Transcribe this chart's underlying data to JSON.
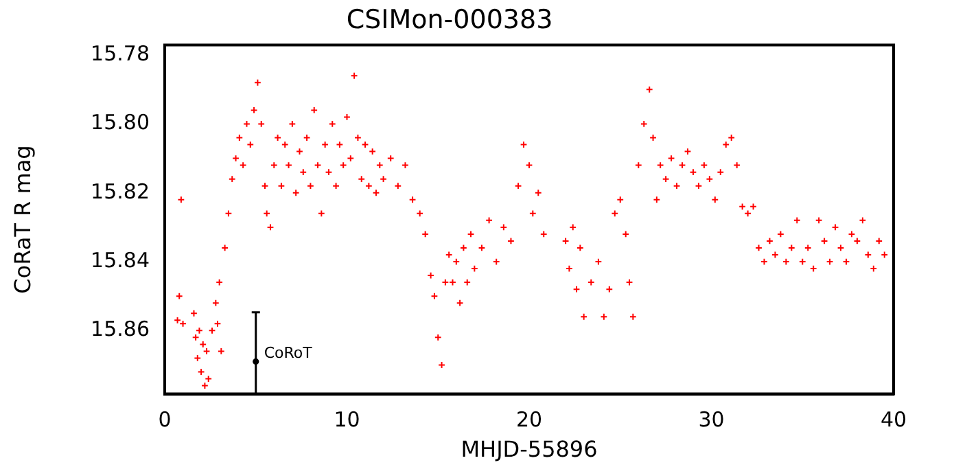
{
  "chart_data": {
    "type": "scatter",
    "title": "CSIMon-000383",
    "xlabel": "MHJD-55896",
    "ylabel": "CoRaT R mag",
    "xlim": [
      0,
      40
    ],
    "xticks": [
      0,
      10,
      20,
      30,
      40
    ],
    "ylim": [
      15.8784,
      15.7771
    ],
    "yticks": [
      {
        "value": 15.78,
        "label": "15.78"
      },
      {
        "value": 15.8,
        "label": "15.80"
      },
      {
        "value": 15.82,
        "label": "15.82"
      },
      {
        "value": 15.84,
        "label": "15.84"
      },
      {
        "value": 15.86,
        "label": "15.86"
      }
    ],
    "grid": false,
    "legend": false,
    "marker": "cross",
    "series": [
      {
        "color": "#ff0000",
        "x": [
          0.7,
          0.8,
          0.9,
          1.0,
          1.6,
          1.7,
          1.8,
          1.9,
          2.0,
          2.1,
          2.2,
          2.3,
          2.4,
          2.6,
          2.8,
          2.9,
          3.0,
          3.1,
          3.3,
          3.5,
          3.7,
          3.9,
          4.1,
          4.3,
          4.5,
          4.7,
          4.9,
          5.1,
          5.3,
          5.5,
          5.6,
          5.8,
          6.0,
          6.2,
          6.4,
          6.6,
          6.8,
          7.0,
          7.2,
          7.4,
          7.6,
          7.8,
          8.0,
          8.2,
          8.4,
          8.6,
          8.8,
          9.0,
          9.2,
          9.4,
          9.6,
          9.8,
          10.0,
          10.2,
          10.4,
          10.6,
          10.8,
          11.0,
          11.2,
          11.4,
          11.6,
          11.8,
          12.0,
          12.4,
          12.8,
          13.2,
          13.6,
          14.0,
          14.3,
          14.6,
          14.8,
          15.0,
          15.2,
          15.4,
          15.6,
          15.8,
          16.0,
          16.2,
          16.4,
          16.6,
          16.8,
          17.0,
          17.4,
          17.8,
          18.2,
          18.6,
          19.0,
          19.4,
          19.7,
          20.0,
          20.2,
          20.5,
          20.8,
          22.0,
          22.2,
          22.4,
          22.6,
          22.8,
          23.0,
          23.4,
          23.8,
          24.1,
          24.4,
          24.7,
          25.0,
          25.3,
          25.5,
          25.7,
          26.0,
          26.3,
          26.6,
          26.8,
          27.0,
          27.2,
          27.5,
          27.8,
          28.1,
          28.4,
          28.7,
          29.0,
          29.3,
          29.6,
          29.9,
          30.2,
          30.5,
          30.8,
          31.1,
          31.4,
          31.7,
          32.0,
          32.3,
          32.6,
          32.9,
          33.2,
          33.5,
          33.8,
          34.1,
          34.4,
          34.7,
          35.0,
          35.3,
          35.6,
          35.9,
          36.2,
          36.5,
          36.8,
          37.1,
          37.4,
          37.7,
          38.0,
          38.3,
          38.6,
          38.9,
          39.2,
          39.5
        ],
        "values": [
          15.857,
          15.85,
          15.822,
          15.858,
          15.855,
          15.862,
          15.868,
          15.86,
          15.872,
          15.864,
          15.876,
          15.866,
          15.874,
          15.86,
          15.852,
          15.858,
          15.846,
          15.866,
          15.836,
          15.826,
          15.816,
          15.81,
          15.804,
          15.812,
          15.8,
          15.806,
          15.796,
          15.788,
          15.8,
          15.818,
          15.826,
          15.83,
          15.812,
          15.804,
          15.818,
          15.806,
          15.812,
          15.8,
          15.82,
          15.808,
          15.814,
          15.804,
          15.818,
          15.796,
          15.812,
          15.826,
          15.806,
          15.814,
          15.8,
          15.818,
          15.806,
          15.812,
          15.798,
          15.81,
          15.786,
          15.804,
          15.816,
          15.806,
          15.818,
          15.808,
          15.82,
          15.812,
          15.816,
          15.81,
          15.818,
          15.812,
          15.822,
          15.826,
          15.832,
          15.844,
          15.85,
          15.862,
          15.87,
          15.846,
          15.838,
          15.846,
          15.84,
          15.852,
          15.836,
          15.846,
          15.832,
          15.842,
          15.836,
          15.828,
          15.84,
          15.83,
          15.834,
          15.818,
          15.806,
          15.812,
          15.826,
          15.82,
          15.832,
          15.834,
          15.842,
          15.83,
          15.848,
          15.836,
          15.856,
          15.846,
          15.84,
          15.856,
          15.848,
          15.826,
          15.822,
          15.832,
          15.846,
          15.856,
          15.812,
          15.8,
          15.79,
          15.804,
          15.822,
          15.812,
          15.816,
          15.81,
          15.818,
          15.812,
          15.808,
          15.814,
          15.818,
          15.812,
          15.816,
          15.822,
          15.814,
          15.806,
          15.804,
          15.812,
          15.824,
          15.826,
          15.824,
          15.836,
          15.84,
          15.834,
          15.838,
          15.832,
          15.84,
          15.836,
          15.828,
          15.84,
          15.836,
          15.842,
          15.828,
          15.834,
          15.84,
          15.83,
          15.836,
          15.84,
          15.832,
          15.834,
          15.828,
          15.838,
          15.842,
          15.834,
          15.838
        ]
      },
      {
        "name": "CoRoT",
        "color": "#000000",
        "marker": "circle",
        "x": [
          5
        ],
        "values": [
          15.869
        ],
        "errors": [
          [
            15.8547,
            15.8784
          ]
        ]
      }
    ]
  }
}
